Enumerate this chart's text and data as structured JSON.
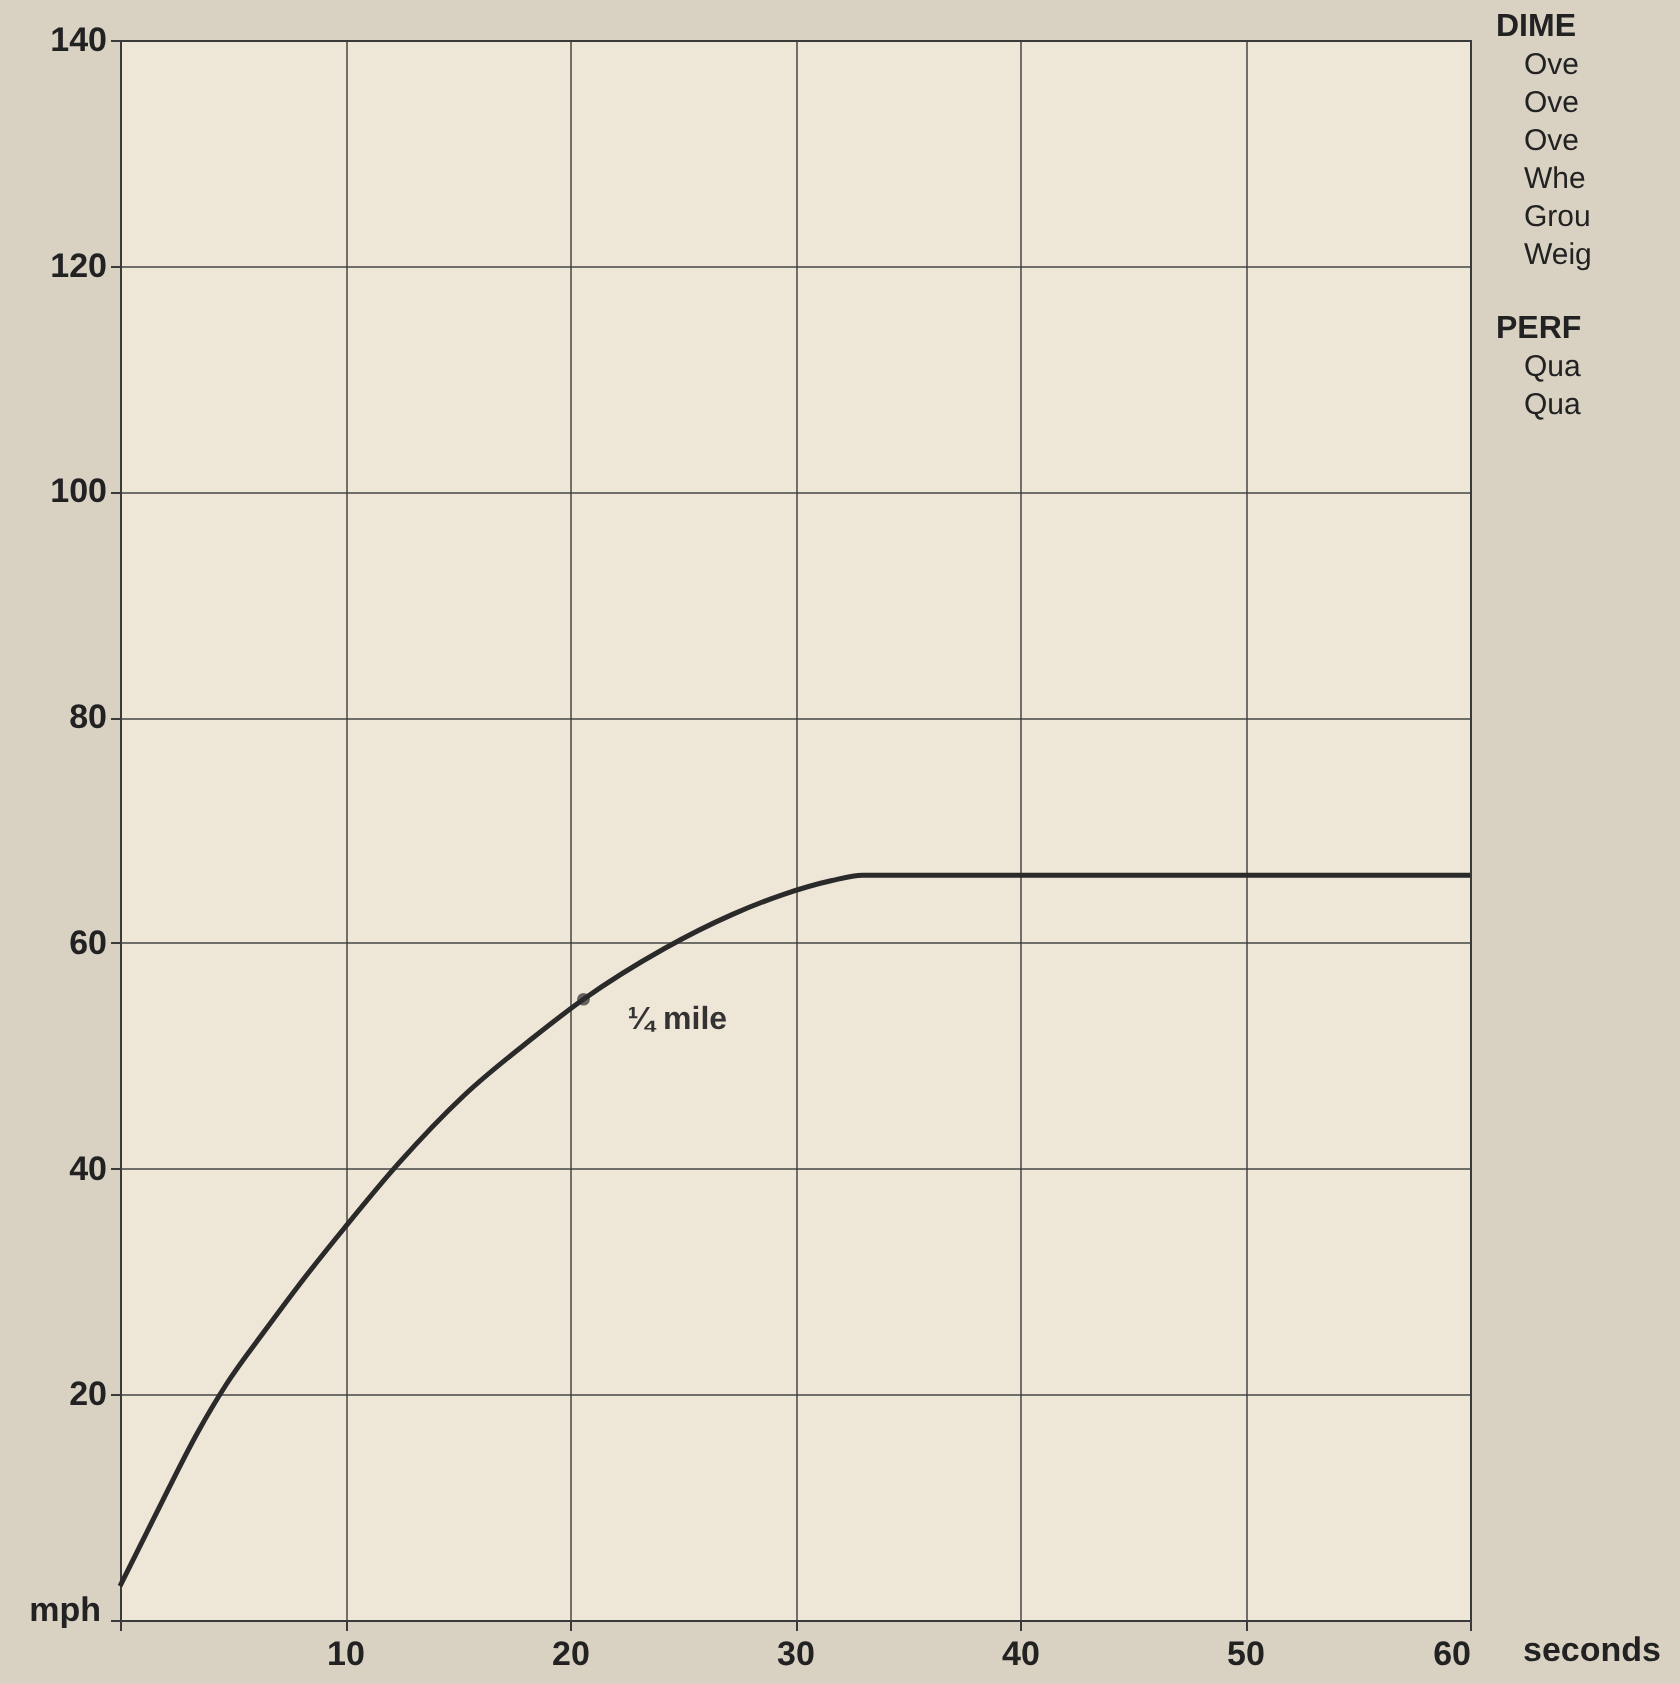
{
  "chart_data": {
    "type": "line",
    "xlabel": "seconds",
    "ylabel": "mph",
    "x": [
      0,
      1.5,
      3.5,
      4.7,
      6.5,
      8,
      10,
      12.4,
      15.3,
      18.3,
      20.6,
      24.2,
      27.2,
      29.5,
      31.6,
      33,
      40,
      50,
      60
    ],
    "series": [
      {
        "color": "#2a2a2a",
        "values": [
          3,
          9,
          16.8,
          20.8,
          25.8,
          29.8,
          34.8,
          40.5,
          46.5,
          51.5,
          55,
          59.5,
          62.5,
          64.3,
          65.5,
          66,
          66,
          66,
          66
        ]
      }
    ],
    "xlim": [
      0,
      60
    ],
    "xticks": [
      {
        "value": 0,
        "label": null
      },
      10,
      20,
      30,
      40,
      50,
      60
    ],
    "ylim": [
      0,
      140
    ],
    "yticks": [
      {
        "value": 0,
        "label": null
      },
      20,
      40,
      60,
      80,
      100,
      120,
      140
    ],
    "grid": true,
    "marker": "none",
    "line_style": "solid",
    "annotations": [
      {
        "text": "¼ mile",
        "x": 20.6,
        "y": 55
      },
      "DIME",
      "Ove",
      "Ove",
      "Ove",
      "Whe",
      "Grou",
      "Weig",
      "PERF",
      "Qua",
      "Qua"
    ]
  }
}
